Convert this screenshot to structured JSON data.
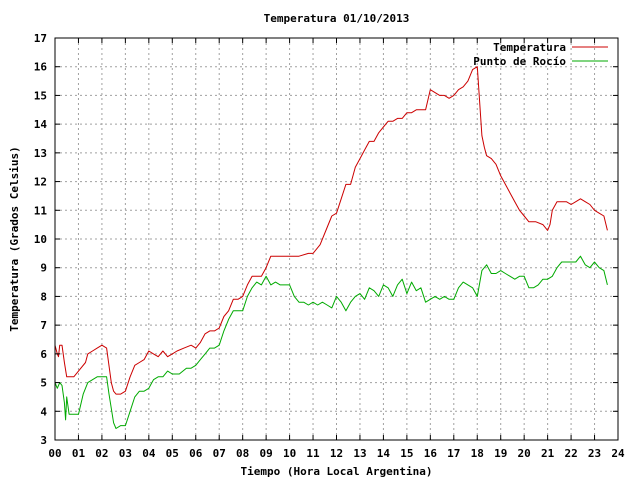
{
  "chart_data": {
    "type": "line",
    "title": "Temperatura 01/10/2013",
    "xlabel": "Tiempo (Hora Local Argentina)",
    "ylabel": "Temperatura (Grados Celsius)",
    "xlim": [
      0,
      24
    ],
    "ylim": [
      3,
      17
    ],
    "x_ticks": [
      "00",
      "01",
      "02",
      "03",
      "04",
      "05",
      "06",
      "07",
      "08",
      "09",
      "10",
      "11",
      "12",
      "13",
      "14",
      "15",
      "16",
      "17",
      "18",
      "19",
      "20",
      "21",
      "22",
      "23",
      "24"
    ],
    "y_ticks": [
      "3",
      "4",
      "5",
      "6",
      "7",
      "8",
      "9",
      "10",
      "11",
      "12",
      "13",
      "14",
      "15",
      "16",
      "17"
    ],
    "grid": true,
    "legend_position": "top-right",
    "series": [
      {
        "name": "Temperatura",
        "color": "#cc0000",
        "x": [
          0.0,
          0.1,
          0.15,
          0.2,
          0.3,
          0.4,
          0.5,
          0.6,
          0.8,
          1.0,
          1.3,
          1.4,
          1.6,
          1.8,
          2.0,
          2.2,
          2.4,
          2.5,
          2.6,
          2.8,
          3.0,
          3.2,
          3.4,
          3.6,
          3.8,
          4.0,
          4.2,
          4.4,
          4.6,
          4.8,
          5.0,
          5.2,
          5.5,
          5.8,
          6.0,
          6.2,
          6.4,
          6.6,
          6.8,
          7.0,
          7.2,
          7.4,
          7.6,
          7.8,
          8.0,
          8.2,
          8.4,
          8.6,
          8.8,
          9.0,
          9.2,
          9.5,
          9.8,
          10.0,
          10.4,
          10.8,
          11.0,
          11.3,
          11.6,
          11.8,
          12.0,
          12.2,
          12.4,
          12.6,
          12.8,
          13.0,
          13.2,
          13.4,
          13.6,
          13.8,
          14.0,
          14.2,
          14.4,
          14.6,
          14.8,
          15.0,
          15.2,
          15.4,
          15.6,
          15.8,
          16.0,
          16.2,
          16.4,
          16.6,
          16.8,
          17.0,
          17.2,
          17.4,
          17.6,
          17.8,
          18.0,
          18.1,
          18.2,
          18.3,
          18.4,
          18.6,
          18.8,
          19.0,
          19.2,
          19.4,
          19.6,
          19.8,
          20.0,
          20.2,
          20.5,
          20.8,
          21.0,
          21.1,
          21.2,
          21.4,
          21.6,
          21.8,
          22.0,
          22.2,
          22.4,
          22.6,
          22.8,
          23.0,
          23.2,
          23.4,
          23.55
        ],
        "values": [
          6.3,
          6.0,
          5.9,
          6.3,
          6.3,
          5.7,
          5.2,
          5.2,
          5.2,
          5.4,
          5.7,
          6.0,
          6.1,
          6.2,
          6.3,
          6.2,
          5.0,
          4.7,
          4.6,
          4.6,
          4.7,
          5.2,
          5.6,
          5.7,
          5.8,
          6.1,
          6.0,
          5.9,
          6.1,
          5.9,
          6.0,
          6.1,
          6.2,
          6.3,
          6.2,
          6.4,
          6.7,
          6.8,
          6.8,
          6.9,
          7.3,
          7.5,
          7.9,
          7.9,
          8.0,
          8.4,
          8.7,
          8.7,
          8.7,
          9.0,
          9.4,
          9.4,
          9.4,
          9.4,
          9.4,
          9.5,
          9.5,
          9.8,
          10.4,
          10.8,
          10.9,
          11.4,
          11.9,
          11.9,
          12.5,
          12.8,
          13.1,
          13.4,
          13.4,
          13.7,
          13.9,
          14.1,
          14.1,
          14.2,
          14.2,
          14.4,
          14.4,
          14.5,
          14.5,
          14.5,
          15.2,
          15.1,
          15.0,
          15.0,
          14.9,
          15.0,
          15.2,
          15.3,
          15.5,
          15.9,
          16.0,
          14.8,
          13.6,
          13.2,
          12.9,
          12.8,
          12.6,
          12.2,
          11.9,
          11.6,
          11.3,
          11.0,
          10.8,
          10.6,
          10.6,
          10.5,
          10.3,
          10.5,
          11.0,
          11.3,
          11.3,
          11.3,
          11.2,
          11.3,
          11.4,
          11.3,
          11.2,
          11.0,
          10.9,
          10.8,
          10.3
        ]
      },
      {
        "name": "Punto de Rocío",
        "color": "#00aa00",
        "x": [
          0.0,
          0.1,
          0.2,
          0.3,
          0.4,
          0.45,
          0.5,
          0.6,
          0.8,
          1.0,
          1.2,
          1.4,
          1.6,
          1.8,
          2.0,
          2.2,
          2.3,
          2.5,
          2.6,
          2.8,
          3.0,
          3.2,
          3.4,
          3.6,
          3.8,
          4.0,
          4.2,
          4.4,
          4.6,
          4.8,
          5.0,
          5.3,
          5.6,
          5.8,
          6.0,
          6.2,
          6.4,
          6.6,
          6.8,
          7.0,
          7.2,
          7.4,
          7.6,
          7.8,
          8.0,
          8.2,
          8.4,
          8.6,
          8.8,
          9.0,
          9.2,
          9.4,
          9.6,
          9.8,
          10.0,
          10.2,
          10.4,
          10.6,
          10.8,
          11.0,
          11.2,
          11.4,
          11.6,
          11.8,
          12.0,
          12.2,
          12.4,
          12.6,
          12.8,
          13.0,
          13.2,
          13.4,
          13.6,
          13.8,
          14.0,
          14.2,
          14.4,
          14.6,
          14.8,
          15.0,
          15.2,
          15.4,
          15.6,
          15.8,
          16.0,
          16.2,
          16.4,
          16.6,
          16.8,
          17.0,
          17.2,
          17.4,
          17.6,
          17.8,
          18.0,
          18.2,
          18.4,
          18.6,
          18.8,
          19.0,
          19.2,
          19.4,
          19.6,
          19.8,
          20.0,
          20.2,
          20.4,
          20.6,
          20.8,
          21.0,
          21.2,
          21.4,
          21.6,
          21.8,
          22.0,
          22.2,
          22.4,
          22.6,
          22.8,
          23.0,
          23.2,
          23.4,
          23.55
        ],
        "values": [
          5.0,
          4.8,
          5.0,
          4.9,
          4.3,
          3.7,
          4.5,
          3.9,
          3.9,
          3.9,
          4.6,
          5.0,
          5.1,
          5.2,
          5.2,
          5.2,
          4.6,
          3.6,
          3.4,
          3.5,
          3.5,
          4.0,
          4.5,
          4.7,
          4.7,
          4.8,
          5.1,
          5.2,
          5.2,
          5.4,
          5.3,
          5.3,
          5.5,
          5.5,
          5.6,
          5.8,
          6.0,
          6.2,
          6.2,
          6.3,
          6.8,
          7.2,
          7.5,
          7.5,
          7.5,
          8.0,
          8.3,
          8.5,
          8.4,
          8.7,
          8.4,
          8.5,
          8.4,
          8.4,
          8.4,
          8.0,
          7.8,
          7.8,
          7.7,
          7.8,
          7.7,
          7.8,
          7.7,
          7.6,
          8.0,
          7.8,
          7.5,
          7.8,
          8.0,
          8.1,
          7.9,
          8.3,
          8.2,
          8.0,
          8.4,
          8.3,
          8.0,
          8.4,
          8.6,
          8.1,
          8.5,
          8.2,
          8.3,
          7.8,
          7.9,
          8.0,
          7.9,
          8.0,
          7.9,
          7.9,
          8.3,
          8.5,
          8.4,
          8.3,
          8.0,
          8.9,
          9.1,
          8.8,
          8.8,
          8.9,
          8.8,
          8.7,
          8.6,
          8.7,
          8.7,
          8.3,
          8.3,
          8.4,
          8.6,
          8.6,
          8.7,
          9.0,
          9.2,
          9.2,
          9.2,
          9.2,
          9.4,
          9.1,
          9.0,
          9.2,
          9.0,
          8.9,
          8.4
        ]
      }
    ]
  }
}
